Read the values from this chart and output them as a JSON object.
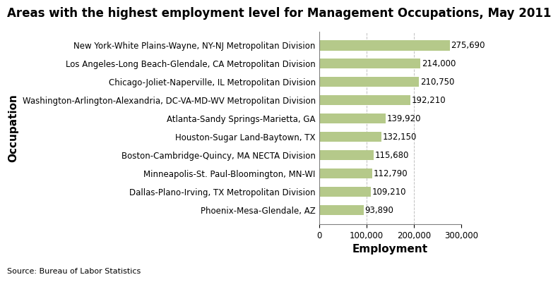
{
  "title": "Areas with the highest employment level for Management Occupations, May 2011",
  "categories": [
    "Phoenix-Mesa-Glendale, AZ",
    "Dallas-Plano-Irving, TX Metropolitan Division",
    "Minneapolis-St. Paul-Bloomington, MN-WI",
    "Boston-Cambridge-Quincy, MA NECTA Division",
    "Houston-Sugar Land-Baytown, TX",
    "Atlanta-Sandy Springs-Marietta, GA",
    "Washington-Arlington-Alexandria, DC-VA-MD-WV Metropolitan Division",
    "Chicago-Joliet-Naperville, IL Metropolitan Division",
    "Los Angeles-Long Beach-Glendale, CA Metropolitan Division",
    "New York-White Plains-Wayne, NY-NJ Metropolitan Division"
  ],
  "values": [
    93890,
    109210,
    112790,
    115680,
    132150,
    139920,
    192210,
    210750,
    214000,
    275690
  ],
  "bar_color": "#b5c98a",
  "xlabel": "Employment",
  "ylabel": "Occupation",
  "xlim": [
    0,
    300000
  ],
  "xticks": [
    0,
    100000,
    200000,
    300000
  ],
  "xtick_labels": [
    "0",
    "100,000",
    "200,000",
    "300,000"
  ],
  "source": "Source: Bureau of Labor Statistics",
  "title_fontsize": 12,
  "label_fontsize": 10,
  "tick_fontsize": 8.5,
  "value_labels": [
    "93,890",
    "109,210",
    "112,790",
    "115,680",
    "132,150",
    "139,920",
    "192,210",
    "210,750",
    "214,000",
    "275,690"
  ],
  "background_color": "#ffffff"
}
